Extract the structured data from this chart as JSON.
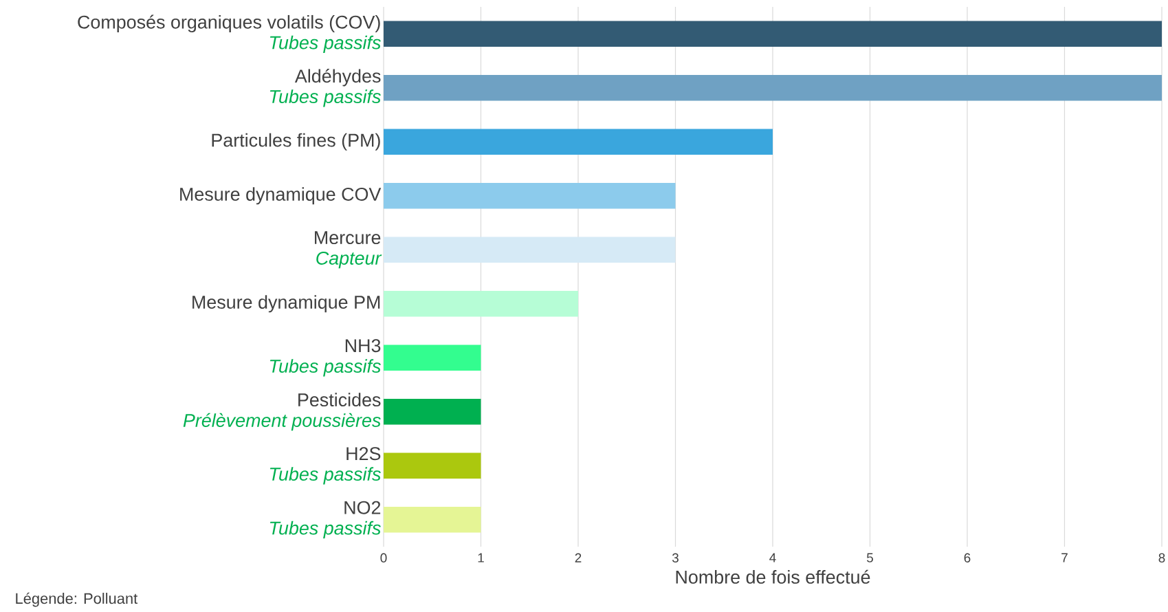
{
  "chart_data": {
    "type": "bar",
    "orientation": "horizontal",
    "xlabel": "Nombre de fois effectué",
    "categories": [
      "Composés organiques volatils (COV)\n*Tubes passifs*",
      "Aldéhydes\n*Tubes passifs*",
      "Particules fines (PM)",
      "Mesure dynamique COV",
      "Mercure\n*Capteur*",
      "Mesure dynamique PM",
      "NH3\n*Tubes passifs*",
      "Pesticides\n*Prélèvement poussières*",
      "H2S\n*Tubes passifs*",
      "NO2\n*Tubes passifs*"
    ],
    "values": [
      8,
      8,
      4,
      3,
      3,
      2,
      1,
      1,
      1,
      1
    ],
    "colors": [
      "#335b74",
      "#6fa1c3",
      "#3aa6dd",
      "#8ccbec",
      "#d6eaf6",
      "#b6fdd6",
      "#33fd8f",
      "#00b050",
      "#abc80e",
      "#e5f595"
    ],
    "xlim": [
      0,
      8
    ],
    "xticks": [
      0,
      1,
      2,
      3,
      4,
      5,
      6,
      7,
      8
    ],
    "grid": "x",
    "annotations": [
      "Légende:  Polluant"
    ]
  }
}
